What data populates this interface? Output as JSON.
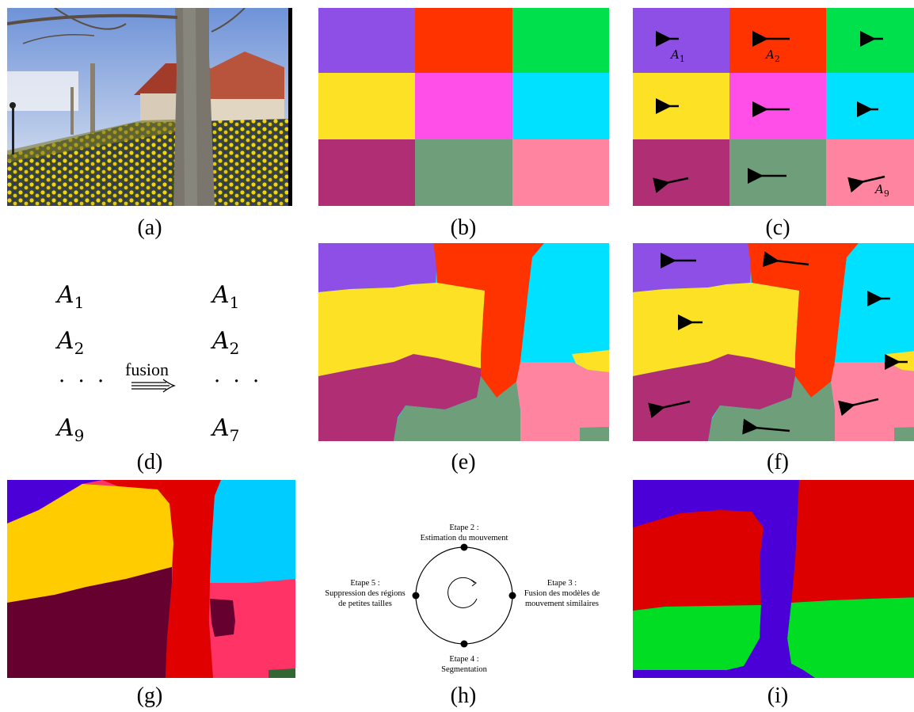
{
  "captions": {
    "a": "(a)",
    "b": "(b)",
    "c": "(c)",
    "d": "(d)",
    "e": "(e)",
    "f": "(f)",
    "g": "(g)",
    "h": "(h)",
    "i": "(i)"
  },
  "panel_c_labels": {
    "a1": "A",
    "a1_sub": "1",
    "a2": "A",
    "a2_sub": "2",
    "a9": "A",
    "a9_sub": "9"
  },
  "panel_d": {
    "left": [
      {
        "sym": "A",
        "sub": "1"
      },
      {
        "sym": "A",
        "sub": "2"
      },
      {
        "sym": "A",
        "sub": "9"
      }
    ],
    "right": [
      {
        "sym": "A",
        "sub": "1"
      },
      {
        "sym": "A",
        "sub": "2"
      },
      {
        "sym": "A",
        "sub": "7"
      }
    ],
    "dots": "· · ·",
    "fusion": "fusion"
  },
  "panel_h": {
    "step2": [
      "Etape 2 :",
      "Estimation du mouvement"
    ],
    "step3": [
      "Etape 3 :",
      "Fusion des modèles de",
      "mouvement similaires"
    ],
    "step4": [
      "Etape 4 :",
      "Segmentation"
    ],
    "step5": [
      "Etape 5 :",
      "Suppression des régions",
      "de petites tailles"
    ]
  },
  "colors": {
    "violet": "#8e4fe6",
    "red": "#ff3300",
    "green": "#00e04c",
    "yellow": "#fde124",
    "magenta": "#ff4fe8",
    "cyan": "#00e1ff",
    "maroon": "#b02e74",
    "sage": "#6f9e7a",
    "pink": "#ff84a0",
    "g_yellow": "#ffcc00",
    "g_red": "#e00000",
    "g_blue": "#4a00d6",
    "g_cyan": "#00ccff",
    "g_dark": "#66002e",
    "g_pink": "#ff3366",
    "i_blue": "#4a00d6",
    "i_red": "#dd0000",
    "i_green": "#00dd22"
  }
}
